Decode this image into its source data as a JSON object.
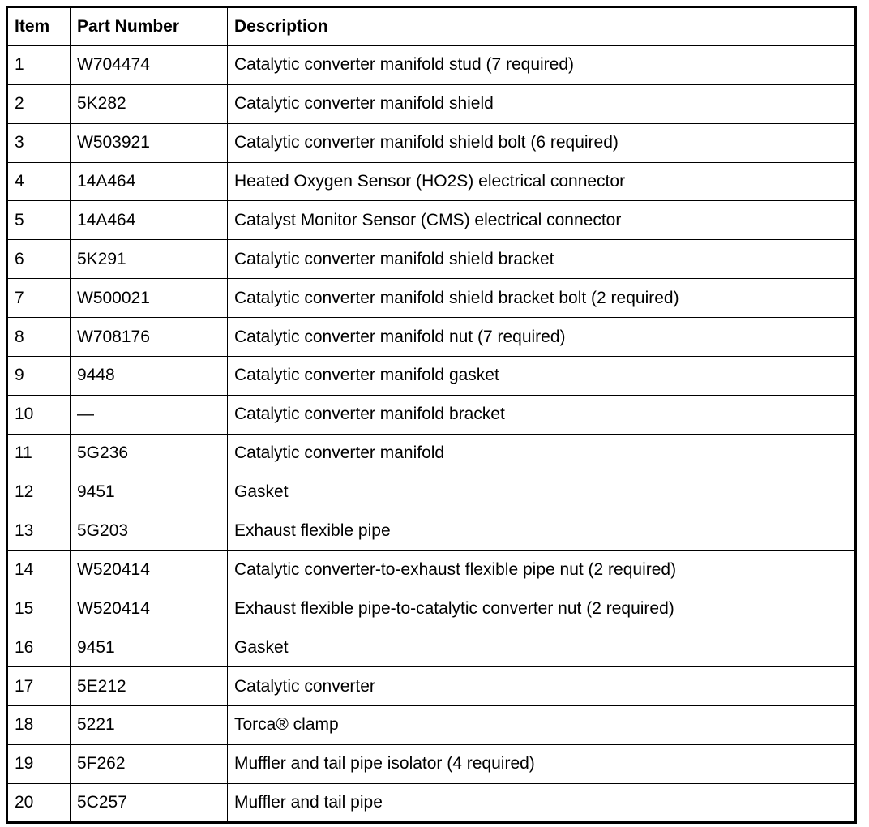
{
  "table": {
    "headers": [
      "Item",
      "Part Number",
      "Description"
    ],
    "rows": [
      [
        "1",
        "W704474",
        "Catalytic converter manifold stud (7 required)"
      ],
      [
        "2",
        "5K282",
        "Catalytic converter manifold shield"
      ],
      [
        "3",
        "W503921",
        "Catalytic converter manifold shield bolt (6 required)"
      ],
      [
        "4",
        "14A464",
        "Heated Oxygen Sensor (HO2S) electrical connector"
      ],
      [
        "5",
        "14A464",
        "Catalyst Monitor Sensor (CMS) electrical connector"
      ],
      [
        "6",
        "5K291",
        "Catalytic converter manifold shield bracket"
      ],
      [
        "7",
        "W500021",
        "Catalytic converter manifold shield bracket bolt (2 required)"
      ],
      [
        "8",
        "W708176",
        "Catalytic converter manifold nut (7 required)"
      ],
      [
        "9",
        "9448",
        "Catalytic converter manifold gasket"
      ],
      [
        "10",
        "—",
        "Catalytic converter manifold bracket"
      ],
      [
        "11",
        "5G236",
        "Catalytic converter manifold"
      ],
      [
        "12",
        "9451",
        "Gasket"
      ],
      [
        "13",
        "5G203",
        "Exhaust flexible pipe"
      ],
      [
        "14",
        "W520414",
        "Catalytic converter-to-exhaust flexible pipe nut (2 required)"
      ],
      [
        "15",
        "W520414",
        "Exhaust flexible pipe-to-catalytic converter nut (2 required)"
      ],
      [
        "16",
        "9451",
        "Gasket"
      ],
      [
        "17",
        "5E212",
        "Catalytic converter"
      ],
      [
        "18",
        "5221",
        "Torca® clamp"
      ],
      [
        "19",
        "5F262",
        "Muffler and tail pipe isolator (4 required)"
      ],
      [
        "20",
        "5C257",
        "Muffler and tail pipe"
      ]
    ]
  }
}
